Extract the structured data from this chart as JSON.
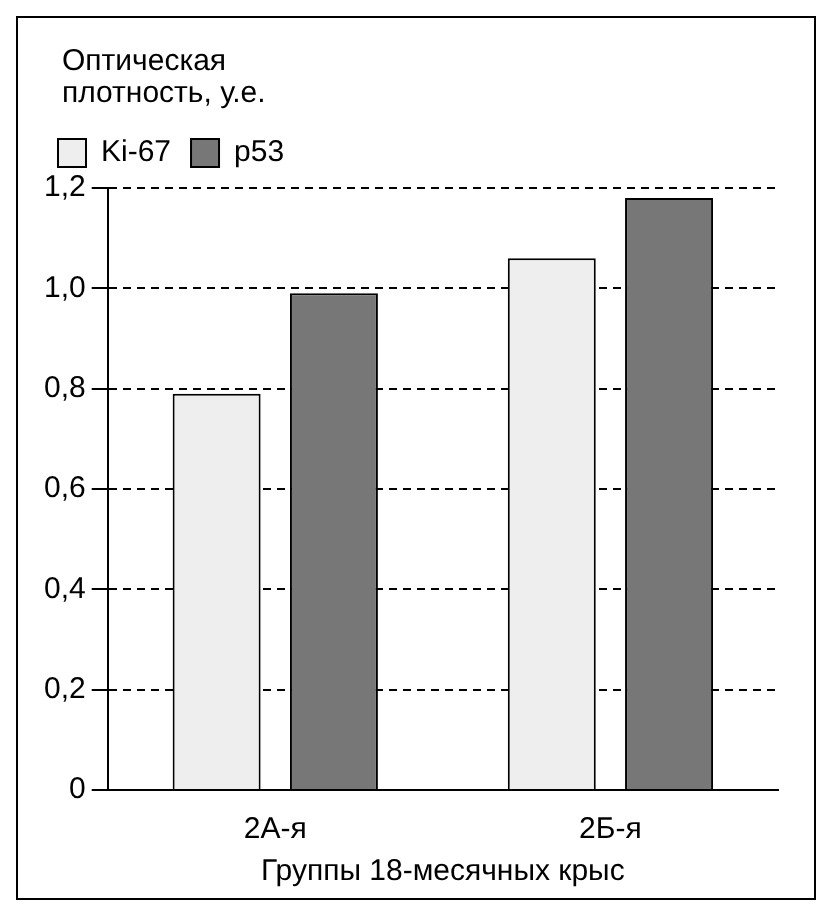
{
  "chart_data": {
    "type": "bar",
    "ylabel": "Оптическая\nплотность, у.е.",
    "xlabel": "Группы 18-месячных крыс",
    "categories": [
      "2А-я",
      "2Б-я"
    ],
    "series": [
      {
        "name": "Ki-67",
        "color": "#eeeeee",
        "values": [
          0.79,
          1.06
        ]
      },
      {
        "name": "p53",
        "color": "#777777",
        "values": [
          0.99,
          1.18
        ]
      }
    ],
    "ylim": [
      0,
      1.2
    ],
    "yticks": [
      {
        "value": 0,
        "label": "0"
      },
      {
        "value": 0.2,
        "label": "0,2"
      },
      {
        "value": 0.4,
        "label": "0,4"
      },
      {
        "value": 0.6,
        "label": "0,6"
      },
      {
        "value": 0.8,
        "label": "0,8"
      },
      {
        "value": 1.0,
        "label": "1,0"
      },
      {
        "value": 1.2,
        "label": "1,2"
      }
    ],
    "grid": "y",
    "legend": "top left",
    "line_style": "dashed"
  }
}
